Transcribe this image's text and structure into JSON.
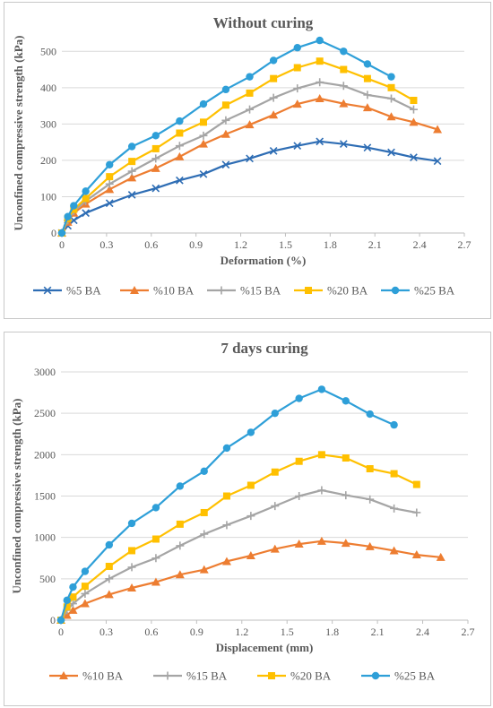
{
  "chart_data": [
    {
      "type": "line",
      "title": "Without curing",
      "xlabel": "Deformation (%)",
      "ylabel": "Unconfined compressive strength (kPa)",
      "xlim": [
        0,
        2.7
      ],
      "ylim": [
        0,
        550
      ],
      "xticks": [
        "0",
        "0.3",
        "0.6",
        "0.9",
        "1.2",
        "1.5",
        "1.8",
        "2.1",
        "2.4",
        "2.7"
      ],
      "yticks": [
        "0",
        "100",
        "200",
        "300",
        "400",
        "500"
      ],
      "grid": "horizontal",
      "legend_position": "bottom",
      "series": [
        {
          "name": "%5 BA",
          "color": "#2e6db4",
          "marker": "x",
          "x": [
            0,
            0.04,
            0.08,
            0.16,
            0.32,
            0.47,
            0.63,
            0.79,
            0.95,
            1.1,
            1.26,
            1.42,
            1.58,
            1.73,
            1.89,
            2.05,
            2.21,
            2.36,
            2.52
          ],
          "y": [
            0,
            20,
            35,
            55,
            82,
            105,
            123,
            145,
            162,
            188,
            205,
            226,
            240,
            252,
            245,
            235,
            222,
            208,
            198
          ]
        },
        {
          "name": "%10 BA",
          "color": "#ed7d31",
          "marker": "triangle",
          "x": [
            0,
            0.04,
            0.08,
            0.16,
            0.32,
            0.47,
            0.63,
            0.79,
            0.95,
            1.1,
            1.26,
            1.42,
            1.58,
            1.73,
            1.89,
            2.05,
            2.21,
            2.36,
            2.52
          ],
          "y": [
            0,
            30,
            55,
            80,
            120,
            152,
            178,
            210,
            245,
            272,
            298,
            325,
            355,
            370,
            356,
            345,
            320,
            305,
            285
          ]
        },
        {
          "name": "%15 BA",
          "color": "#a5a5a5",
          "marker": "plus",
          "x": [
            0,
            0.04,
            0.08,
            0.16,
            0.32,
            0.47,
            0.63,
            0.79,
            0.95,
            1.1,
            1.26,
            1.42,
            1.58,
            1.73,
            1.89,
            2.05,
            2.21,
            2.36
          ],
          "y": [
            0,
            35,
            60,
            88,
            135,
            170,
            205,
            240,
            268,
            310,
            340,
            372,
            398,
            415,
            405,
            380,
            370,
            340
          ]
        },
        {
          "name": "%20 BA",
          "color": "#ffc000",
          "marker": "square",
          "x": [
            0,
            0.04,
            0.08,
            0.16,
            0.32,
            0.47,
            0.63,
            0.79,
            0.95,
            1.1,
            1.26,
            1.42,
            1.58,
            1.73,
            1.89,
            2.05,
            2.21,
            2.36
          ],
          "y": [
            0,
            40,
            65,
            95,
            155,
            197,
            232,
            275,
            305,
            352,
            385,
            425,
            455,
            473,
            450,
            425,
            400,
            365
          ]
        },
        {
          "name": "%25 BA",
          "color": "#2e9fd8",
          "marker": "circle",
          "x": [
            0,
            0.04,
            0.08,
            0.16,
            0.32,
            0.47,
            0.63,
            0.79,
            0.95,
            1.1,
            1.26,
            1.42,
            1.58,
            1.73,
            1.89,
            2.05,
            2.21
          ],
          "y": [
            0,
            45,
            75,
            115,
            188,
            238,
            268,
            308,
            355,
            395,
            430,
            475,
            510,
            530,
            500,
            465,
            430
          ]
        }
      ]
    },
    {
      "type": "line",
      "title": "7 days curing",
      "xlabel": "Displacement (mm)",
      "ylabel": "Unconfined compressive strength (kPa)",
      "xlim": [
        0,
        2.7
      ],
      "ylim": [
        0,
        3000
      ],
      "xticks": [
        "0",
        "0.3",
        "0.6",
        "0.9",
        "1.2",
        "1.5",
        "1.8",
        "2.1",
        "2.4",
        "2.7"
      ],
      "yticks": [
        "0",
        "500",
        "1000",
        "1500",
        "2000",
        "2500",
        "3000"
      ],
      "grid": "horizontal",
      "legend_position": "bottom",
      "series": [
        {
          "name": "%10 BA",
          "color": "#ed7d31",
          "marker": "triangle",
          "x": [
            0,
            0.04,
            0.08,
            0.16,
            0.32,
            0.47,
            0.63,
            0.79,
            0.95,
            1.1,
            1.26,
            1.42,
            1.58,
            1.73,
            1.89,
            2.05,
            2.21,
            2.36,
            2.52
          ],
          "y": [
            0,
            60,
            120,
            200,
            310,
            390,
            460,
            550,
            610,
            710,
            780,
            860,
            920,
            955,
            930,
            890,
            840,
            790,
            760
          ]
        },
        {
          "name": "%15 BA",
          "color": "#a5a5a5",
          "marker": "plus",
          "x": [
            0,
            0.04,
            0.08,
            0.16,
            0.32,
            0.47,
            0.63,
            0.79,
            0.95,
            1.1,
            1.26,
            1.42,
            1.58,
            1.73,
            1.89,
            2.05,
            2.21,
            2.36
          ],
          "y": [
            0,
            120,
            200,
            320,
            500,
            640,
            750,
            900,
            1040,
            1150,
            1260,
            1380,
            1500,
            1570,
            1510,
            1460,
            1350,
            1300
          ]
        },
        {
          "name": "%20 BA",
          "color": "#ffc000",
          "marker": "square",
          "x": [
            0,
            0.04,
            0.08,
            0.16,
            0.32,
            0.47,
            0.63,
            0.79,
            0.95,
            1.1,
            1.26,
            1.42,
            1.58,
            1.73,
            1.89,
            2.05,
            2.21,
            2.36
          ],
          "y": [
            0,
            160,
            280,
            410,
            650,
            840,
            980,
            1160,
            1300,
            1500,
            1630,
            1790,
            1920,
            2000,
            1960,
            1830,
            1770,
            1640
          ]
        },
        {
          "name": "%25 BA",
          "color": "#2e9fd8",
          "marker": "circle",
          "x": [
            0,
            0.04,
            0.08,
            0.16,
            0.32,
            0.47,
            0.63,
            0.79,
            0.95,
            1.1,
            1.26,
            1.42,
            1.58,
            1.73,
            1.89,
            2.05,
            2.21
          ],
          "y": [
            0,
            240,
            400,
            590,
            910,
            1170,
            1360,
            1620,
            1800,
            2080,
            2270,
            2500,
            2680,
            2790,
            2650,
            2490,
            2360
          ]
        }
      ]
    }
  ]
}
